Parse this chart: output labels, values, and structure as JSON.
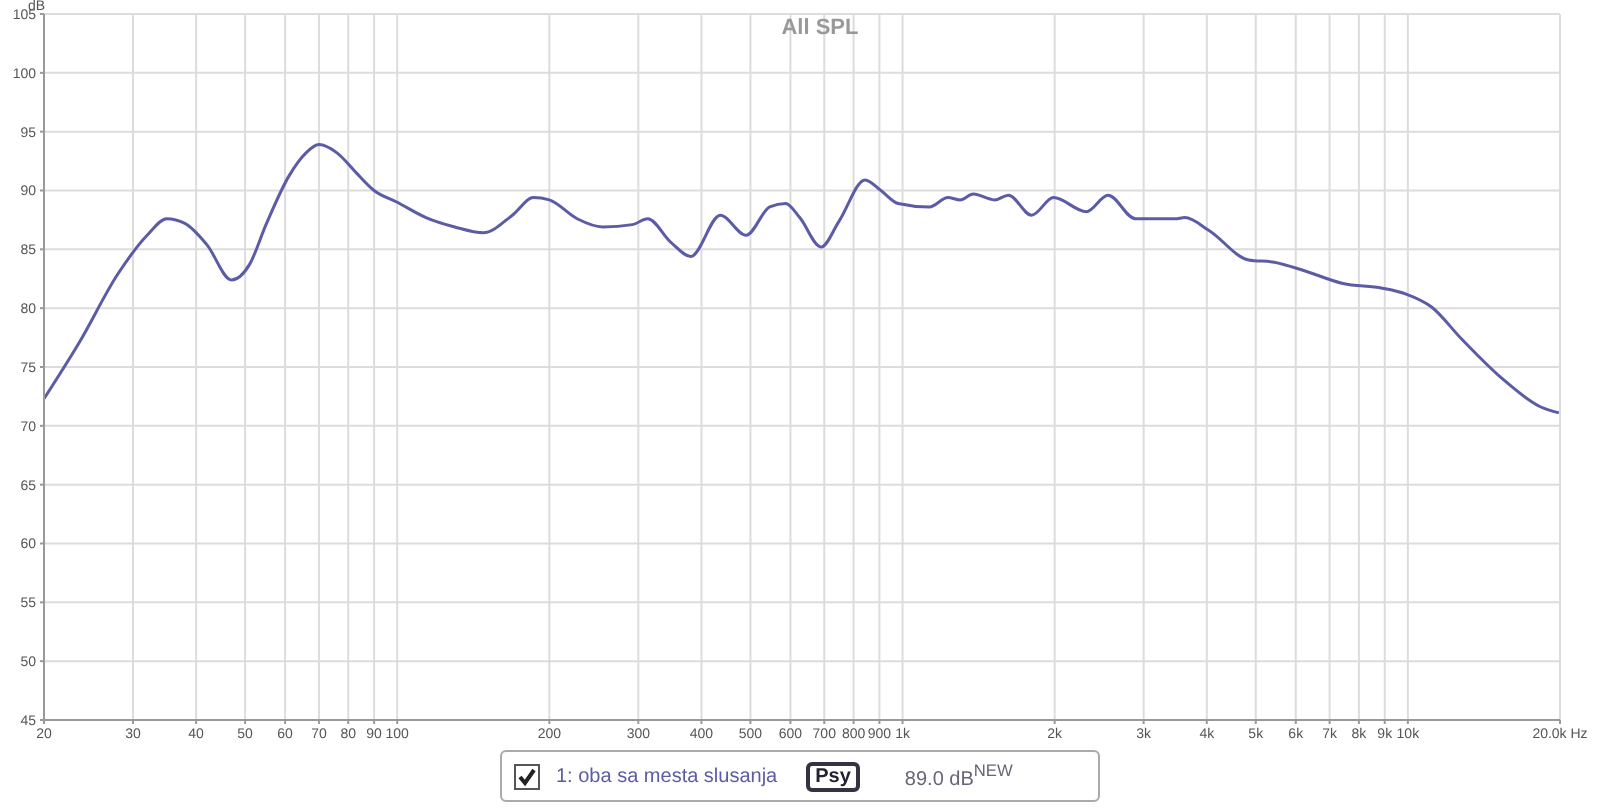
{
  "chart_data": {
    "type": "line",
    "title": "All SPL",
    "ylabel": "dB",
    "log": "x",
    "grid": true,
    "legend": "bottom",
    "marker": "none",
    "line_style": "solid",
    "xlim": [
      20,
      20000
    ],
    "ylim": [
      45,
      105
    ],
    "yticks": [
      45,
      50,
      55,
      60,
      65,
      70,
      75,
      80,
      85,
      90,
      95,
      100,
      105
    ],
    "xticks": [
      20,
      30,
      40,
      50,
      60,
      70,
      80,
      90,
      100,
      200,
      300,
      400,
      500,
      600,
      700,
      800,
      900,
      {
        "value": 1000,
        "label": "1k"
      },
      {
        "value": 2000,
        "label": "2k"
      },
      {
        "value": 3000,
        "label": "3k"
      },
      {
        "value": 4000,
        "label": "4k"
      },
      {
        "value": 5000,
        "label": "5k"
      },
      {
        "value": 6000,
        "label": "6k"
      },
      {
        "value": 7000,
        "label": "7k"
      },
      {
        "value": 8000,
        "label": "8k"
      },
      {
        "value": 9000,
        "label": "9k"
      },
      {
        "value": 10000,
        "label": "10k"
      },
      {
        "value": 20000,
        "label": "20.0k Hz"
      }
    ],
    "annotations": [
      "Psy",
      "89.0 dB$^{NEW}$"
    ],
    "series": [
      {
        "name": "1: oba sa mesta slusanja",
        "color": "#5c5ca6",
        "x": [
          20,
          23.5,
          28,
          32,
          35,
          38,
          42,
          47,
          51,
          55,
          61,
          66,
          70,
          76,
          83,
          90,
          100,
          114,
          130,
          148,
          169,
          186,
          200,
          227,
          255,
          292,
          313,
          348,
          381,
          436,
          490,
          546,
          587,
          626,
          690,
          749,
          843,
          906,
          980,
          1130,
          1230,
          1300,
          1380,
          1520,
          1620,
          1800,
          1990,
          2310,
          2550,
          2890,
          3460,
          3620,
          4040,
          4840,
          5440,
          6220,
          7440,
          8900,
          9920,
          11140,
          12760,
          15290,
          18330,
          19900
        ],
        "values": [
          72.3,
          77.1,
          82.9,
          86.2,
          87.6,
          87.2,
          85.4,
          82.4,
          83.7,
          87.1,
          91.2,
          93.2,
          93.9,
          93.2,
          91.5,
          90.0,
          89.0,
          87.7,
          86.9,
          86.4,
          87.9,
          89.4,
          89.2,
          87.6,
          86.9,
          87.1,
          87.6,
          85.6,
          84.4,
          87.9,
          86.2,
          88.6,
          88.9,
          87.7,
          85.2,
          87.4,
          90.9,
          90.0,
          88.9,
          88.6,
          89.4,
          89.2,
          89.7,
          89.2,
          89.6,
          87.9,
          89.4,
          88.2,
          89.6,
          87.6,
          87.6,
          87.7,
          86.6,
          84.1,
          83.9,
          83.2,
          82.1,
          81.7,
          81.2,
          80.1,
          77.4,
          74.1,
          71.6,
          71.1
        ]
      }
    ]
  }
}
